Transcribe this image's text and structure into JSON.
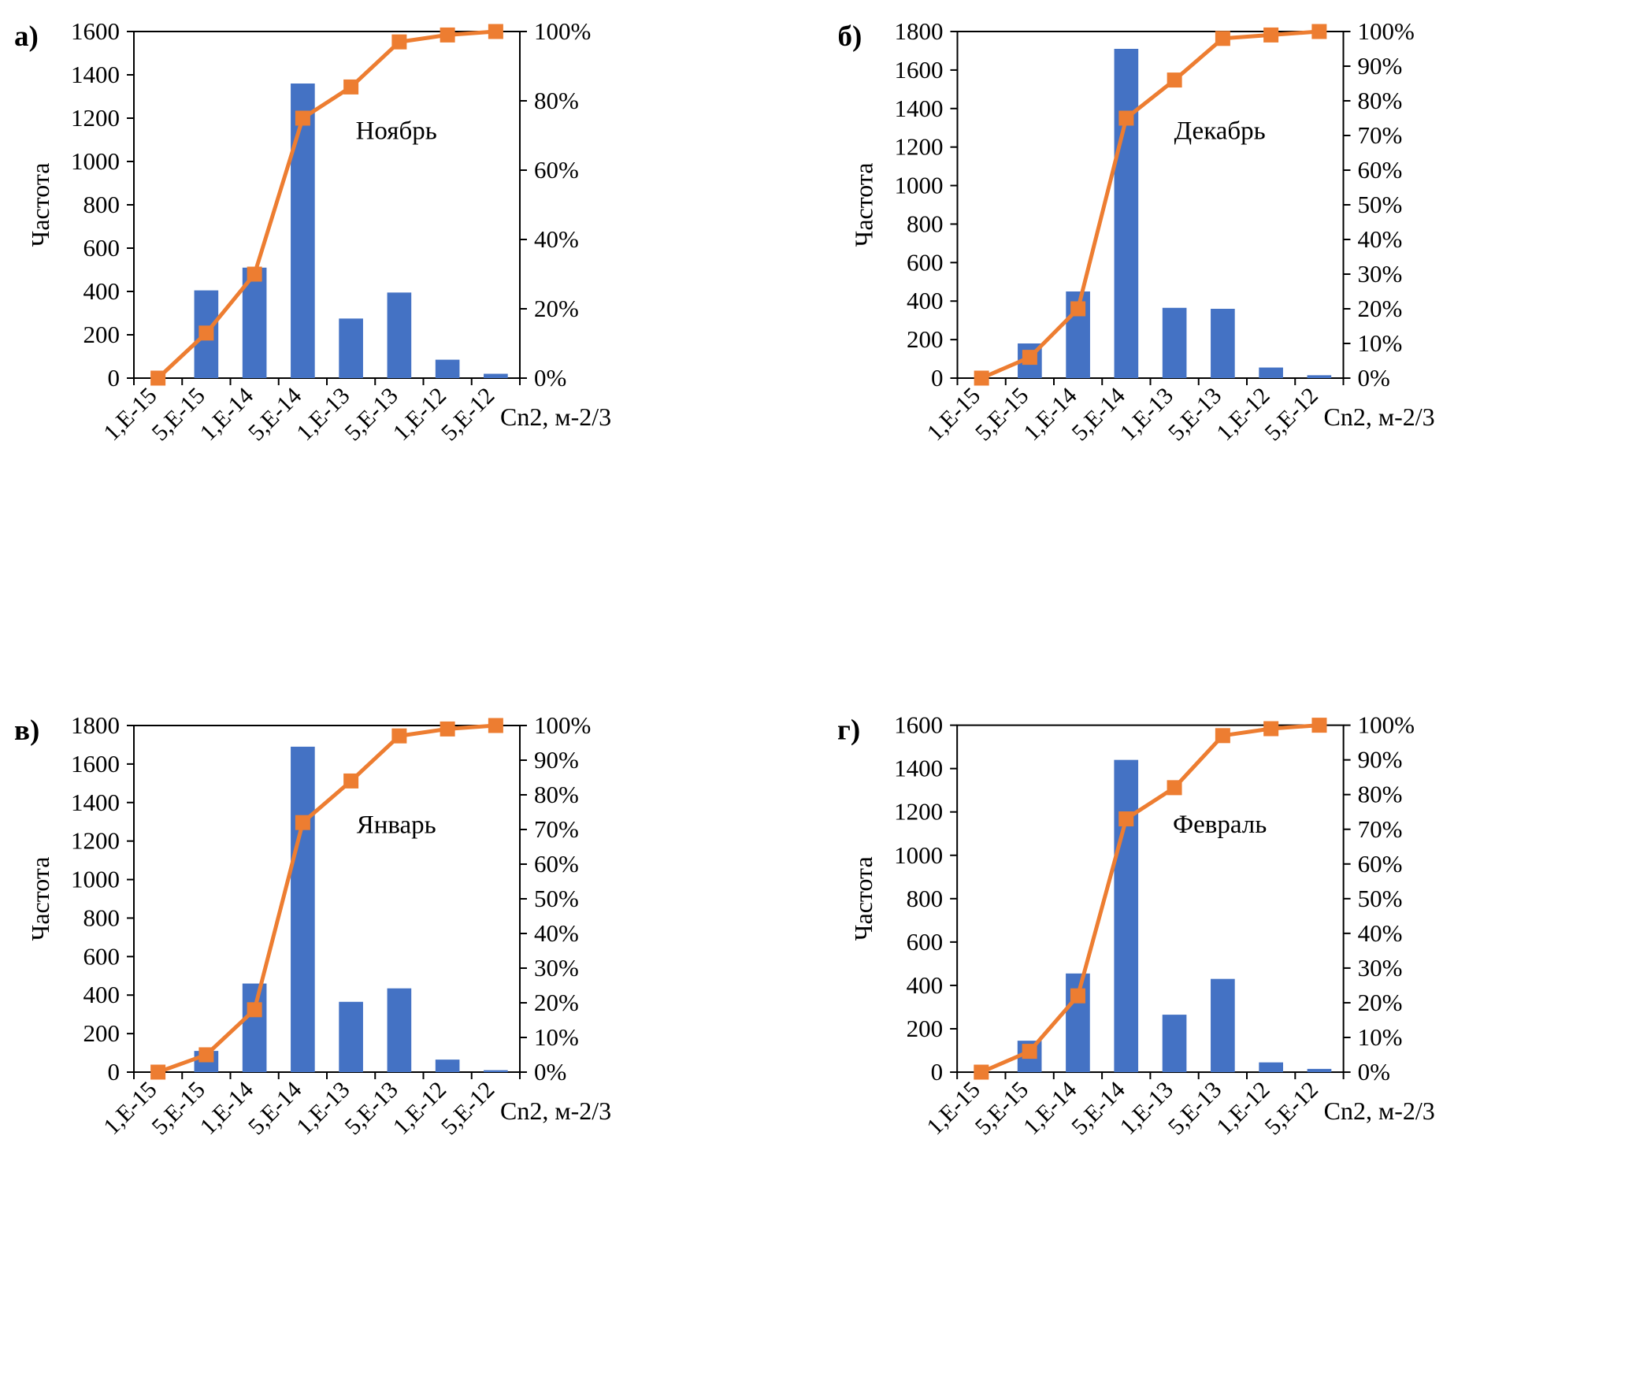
{
  "figure": {
    "description": "Histograms of Cn2 frequency with cumulative percent (Pareto) for four months",
    "shared_xlabel": "Cn2, м-2/3",
    "shared_ylabel": "Частота"
  },
  "chart_data": [
    {
      "type": "bar",
      "subtype": "pareto",
      "panel": "а)",
      "title": "Ноябрь",
      "xlabel": "Cn2, м-2/3",
      "ylabel": "Частота",
      "categories": [
        "1,E-15",
        "5,E-15",
        "1,E-14",
        "5,E-14",
        "1,E-13",
        "5,E-13",
        "1,E-12",
        "5,E-12"
      ],
      "bar_values": [
        0,
        405,
        510,
        1360,
        275,
        395,
        85,
        20
      ],
      "cumulative_pct": [
        0,
        13,
        30,
        75,
        84,
        97,
        99,
        100
      ],
      "ylim": [
        0,
        1600
      ],
      "ytick_step": 200,
      "y2lim": [
        0,
        100
      ],
      "y2tick_step": 20,
      "grid": false,
      "legend": "none",
      "bar_color": "#4472C4",
      "line_color": "#ED7D31"
    },
    {
      "type": "bar",
      "subtype": "pareto",
      "panel": "б)",
      "title": "Декабрь",
      "xlabel": "Cn2, м-2/3",
      "ylabel": "Частота",
      "categories": [
        "1,E-15",
        "5,E-15",
        "1,E-14",
        "5,E-14",
        "1,E-13",
        "5,E-13",
        "1,E-12",
        "5,E-12"
      ],
      "bar_values": [
        0,
        180,
        450,
        1710,
        365,
        360,
        55,
        15
      ],
      "cumulative_pct": [
        0,
        6,
        20,
        75,
        86,
        98,
        99,
        100
      ],
      "ylim": [
        0,
        1800
      ],
      "ytick_step": 200,
      "y2lim": [
        0,
        100
      ],
      "y2tick_step": 10,
      "grid": false,
      "legend": "none",
      "bar_color": "#4472C4",
      "line_color": "#ED7D31"
    },
    {
      "type": "bar",
      "subtype": "pareto",
      "panel": "в)",
      "title": "Январь",
      "xlabel": "Cn2, м-2/3",
      "ylabel": "Частота",
      "categories": [
        "1,E-15",
        "5,E-15",
        "1,E-14",
        "5,E-14",
        "1,E-13",
        "5,E-13",
        "1,E-12",
        "5,E-12"
      ],
      "bar_values": [
        0,
        110,
        460,
        1690,
        365,
        435,
        65,
        10
      ],
      "cumulative_pct": [
        0,
        5,
        18,
        72,
        84,
        97,
        99,
        100
      ],
      "ylim": [
        0,
        1800
      ],
      "ytick_step": 200,
      "y2lim": [
        0,
        100
      ],
      "y2tick_step": 10,
      "grid": false,
      "legend": "none",
      "bar_color": "#4472C4",
      "line_color": "#ED7D31"
    },
    {
      "type": "bar",
      "subtype": "pareto",
      "panel": "г)",
      "title": "Февраль",
      "xlabel": "Cn2, м-2/3",
      "ylabel": "Частота",
      "categories": [
        "1,E-15",
        "5,E-15",
        "1,E-14",
        "5,E-14",
        "1,E-13",
        "5,E-13",
        "1,E-12",
        "5,E-12"
      ],
      "bar_values": [
        0,
        145,
        455,
        1440,
        265,
        430,
        45,
        15
      ],
      "cumulative_pct": [
        0,
        6,
        22,
        73,
        82,
        97,
        99,
        100
      ],
      "ylim": [
        0,
        1600
      ],
      "ytick_step": 200,
      "y2lim": [
        0,
        100
      ],
      "y2tick_step": 10,
      "grid": false,
      "legend": "none",
      "bar_color": "#4472C4",
      "line_color": "#ED7D31"
    }
  ]
}
